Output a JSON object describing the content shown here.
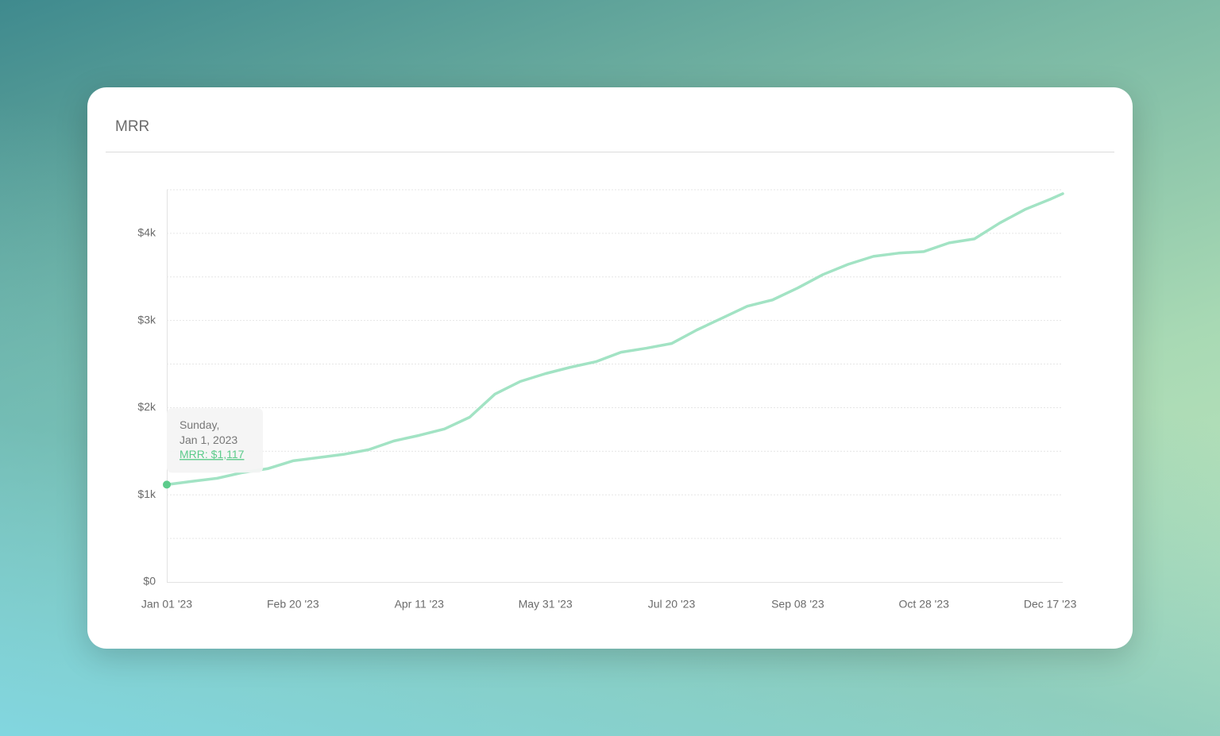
{
  "chart_data": {
    "type": "line",
    "title": "MRR",
    "color": "#a2e3c4",
    "point_color": "#5ccb8b",
    "x": [
      "2023-01-01",
      "2023-01-11",
      "2023-01-21",
      "2023-01-31",
      "2023-02-10",
      "2023-02-20",
      "2023-03-02",
      "2023-03-12",
      "2023-03-22",
      "2023-04-01",
      "2023-04-11",
      "2023-04-21",
      "2023-05-01",
      "2023-05-11",
      "2023-05-21",
      "2023-05-31",
      "2023-06-10",
      "2023-06-20",
      "2023-06-30",
      "2023-07-10",
      "2023-07-20",
      "2023-07-30",
      "2023-08-09",
      "2023-08-19",
      "2023-08-29",
      "2023-09-08",
      "2023-09-18",
      "2023-09-28",
      "2023-10-08",
      "2023-10-18",
      "2023-10-28",
      "2023-11-07",
      "2023-11-17",
      "2023-11-27",
      "2023-12-07",
      "2023-12-17",
      "2023-12-22"
    ],
    "values": [
      1117,
      1155,
      1190,
      1255,
      1300,
      1390,
      1427,
      1464,
      1518,
      1618,
      1682,
      1755,
      1890,
      2155,
      2300,
      2390,
      2464,
      2527,
      2636,
      2682,
      2736,
      2891,
      3027,
      3164,
      3236,
      3373,
      3527,
      3645,
      3736,
      3773,
      3791,
      3891,
      3936,
      4118,
      4273,
      4391,
      4455
    ],
    "xlim": [
      "2023-01-01",
      "2023-12-22"
    ],
    "xticks": [
      {
        "value": "2023-01-01",
        "label": "Jan 01 '23"
      },
      {
        "value": "2023-02-20",
        "label": "Feb 20 '23"
      },
      {
        "value": "2023-04-11",
        "label": "Apr 11 '23"
      },
      {
        "value": "2023-05-31",
        "label": "May 31 '23"
      },
      {
        "value": "2023-07-20",
        "label": "Jul 20 '23"
      },
      {
        "value": "2023-09-08",
        "label": "Sep 08 '23"
      },
      {
        "value": "2023-10-28",
        "label": "Oct 28 '23"
      },
      {
        "value": "2023-12-17",
        "label": "Dec 17 '23"
      }
    ],
    "ylim": [
      0,
      4500
    ],
    "yticks": [
      {
        "value": 0,
        "label": "$0"
      },
      {
        "value": 1000,
        "label": "$1k"
      },
      {
        "value": 2000,
        "label": "$2k"
      },
      {
        "value": 3000,
        "label": "$3k"
      },
      {
        "value": 4000,
        "label": "$4k"
      }
    ],
    "ygrid": [
      500,
      1500,
      2500,
      3500,
      4500
    ],
    "grid": true,
    "tooltip": {
      "weekday": "Sunday,",
      "date": "Jan 1, 2023",
      "text": "MRR: $1,117"
    }
  }
}
